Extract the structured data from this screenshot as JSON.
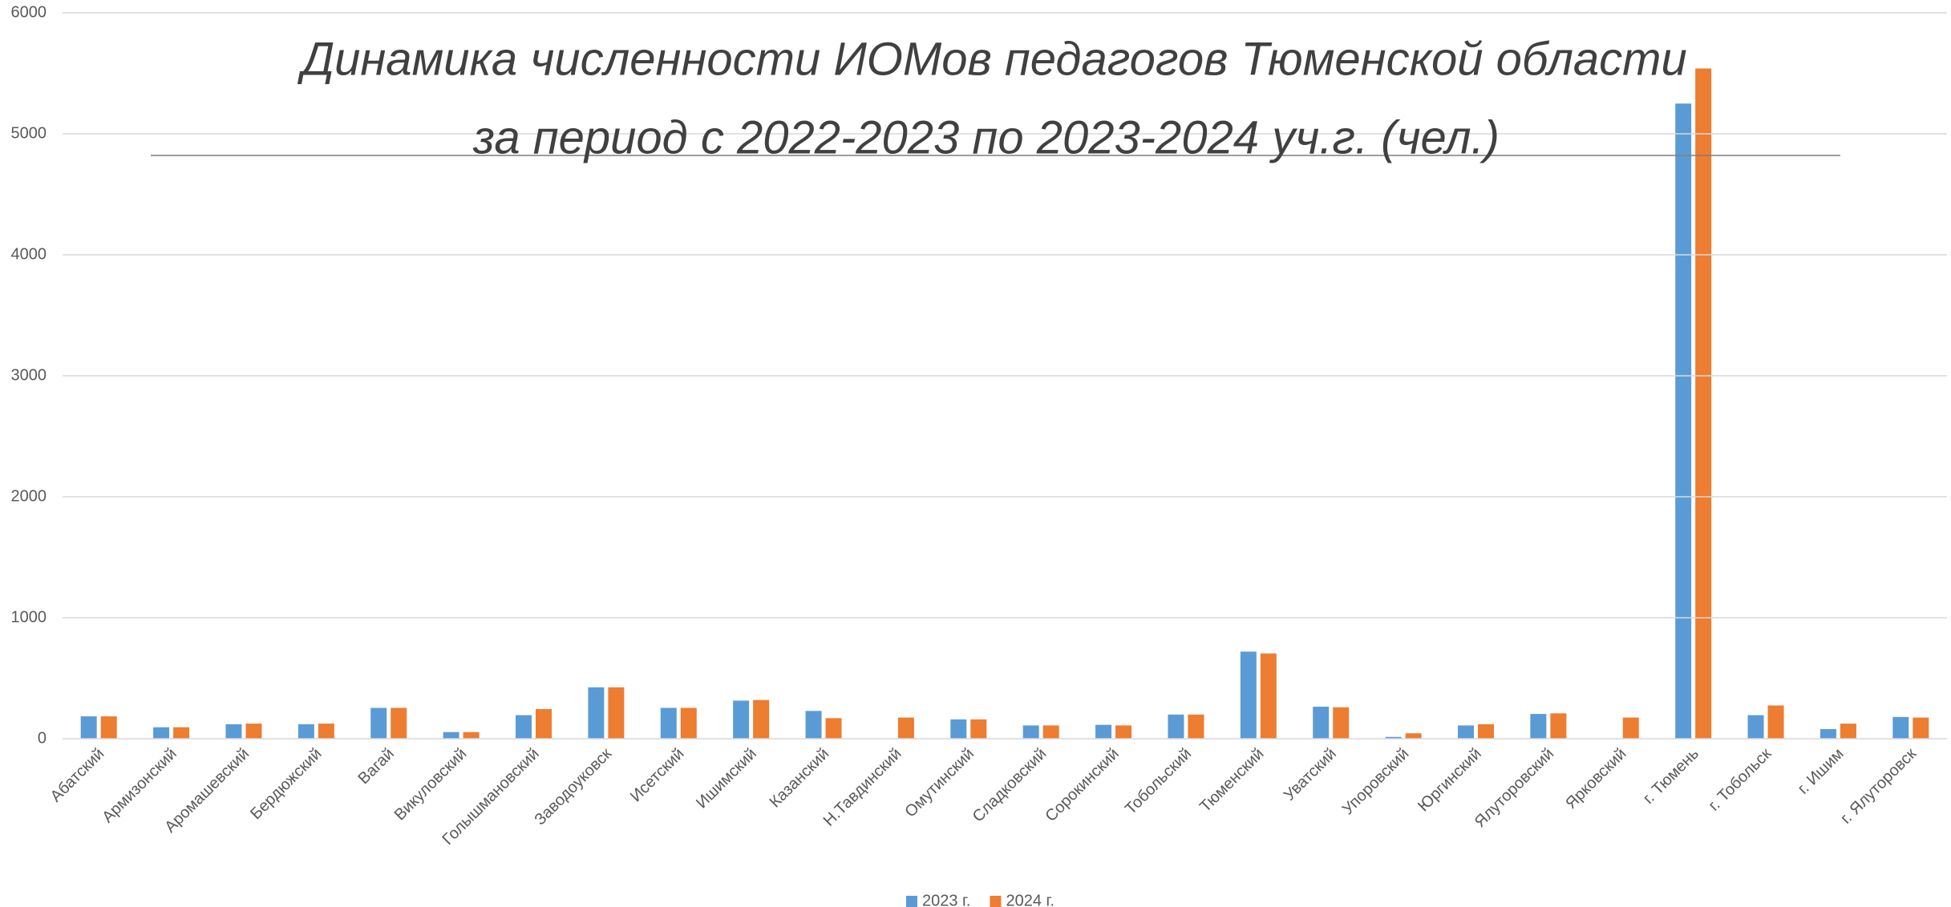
{
  "chart_data": {
    "type": "bar",
    "title": "Динамика численности ИОМов педагогов Тюменской области",
    "subtitle": "за период с 2022-2023 по 2023-2024 уч.г. (чел.)",
    "categories": [
      "Абатский",
      "Армизонский",
      "Аромашевский",
      "Бердюжский",
      "Вагай",
      "Викуловский",
      "Голышмановский",
      "Заводоуковск",
      "Исетский",
      "Ишимский",
      "Казанский",
      "Н.Тавдинский",
      "Омутинский",
      "Сладковский",
      "Сорокинский",
      "Тобольский",
      "Тюменский",
      "Уватский",
      "Упоровский",
      "Юргинский",
      "Ялуторовский",
      "Ярковский",
      "г. Тюмень",
      "г. Тобольск",
      "г. Ишим",
      "г. Ялуторовск"
    ],
    "series": [
      {
        "name": "2023 г.",
        "color": "#5b9bd5",
        "values": [
          185,
          95,
          120,
          120,
          255,
          55,
          195,
          425,
          255,
          315,
          230,
          0,
          160,
          110,
          115,
          200,
          720,
          265,
          15,
          110,
          205,
          0,
          5250,
          195,
          80,
          180
        ]
      },
      {
        "name": "2024 г.",
        "color": "#ed7d31",
        "values": [
          185,
          95,
          125,
          125,
          255,
          55,
          245,
          425,
          255,
          320,
          170,
          175,
          160,
          110,
          110,
          200,
          705,
          260,
          45,
          120,
          210,
          175,
          5540,
          275,
          125,
          175
        ]
      }
    ],
    "ylim": [
      0,
      6000
    ],
    "yticks": [
      0,
      1000,
      2000,
      3000,
      4000,
      5000,
      6000
    ],
    "grid": true,
    "legend": "bottom"
  }
}
